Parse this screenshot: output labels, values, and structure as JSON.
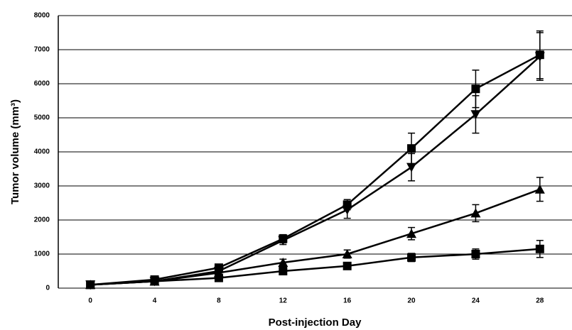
{
  "chart_data": {
    "type": "line",
    "xlabel": "Post-injection Day",
    "ylabel": "Tumor volume (mm³)",
    "categories": [
      "0",
      "4",
      "8",
      "12",
      "16",
      "20",
      "24",
      "28"
    ],
    "ylim": [
      0,
      8000
    ],
    "yticks": [
      0,
      1000,
      2000,
      3000,
      4000,
      5000,
      6000,
      7000,
      8000
    ],
    "grid": true,
    "series": [
      {
        "color": "#000000",
        "marker": "square",
        "values": [
          100,
          250,
          600,
          1450,
          2450,
          4100,
          5850,
          6850
        ],
        "errors": [
          50,
          80,
          100,
          120,
          150,
          450,
          550,
          700
        ]
      },
      {
        "color": "#000000",
        "marker": "triangle-down",
        "values": [
          100,
          200,
          500,
          1400,
          2300,
          3550,
          5100,
          6800
        ],
        "errors": [
          50,
          80,
          100,
          120,
          250,
          400,
          550,
          700
        ]
      },
      {
        "color": "#000000",
        "marker": "triangle-up",
        "values": [
          100,
          200,
          450,
          750,
          1000,
          1600,
          2200,
          2900
        ],
        "errors": [
          50,
          60,
          80,
          100,
          120,
          180,
          250,
          350
        ]
      },
      {
        "color": "#000000",
        "marker": "square",
        "values": [
          100,
          200,
          300,
          500,
          650,
          900,
          1000,
          1150
        ],
        "errors": [
          50,
          60,
          60,
          80,
          100,
          120,
          150,
          250
        ]
      }
    ]
  }
}
